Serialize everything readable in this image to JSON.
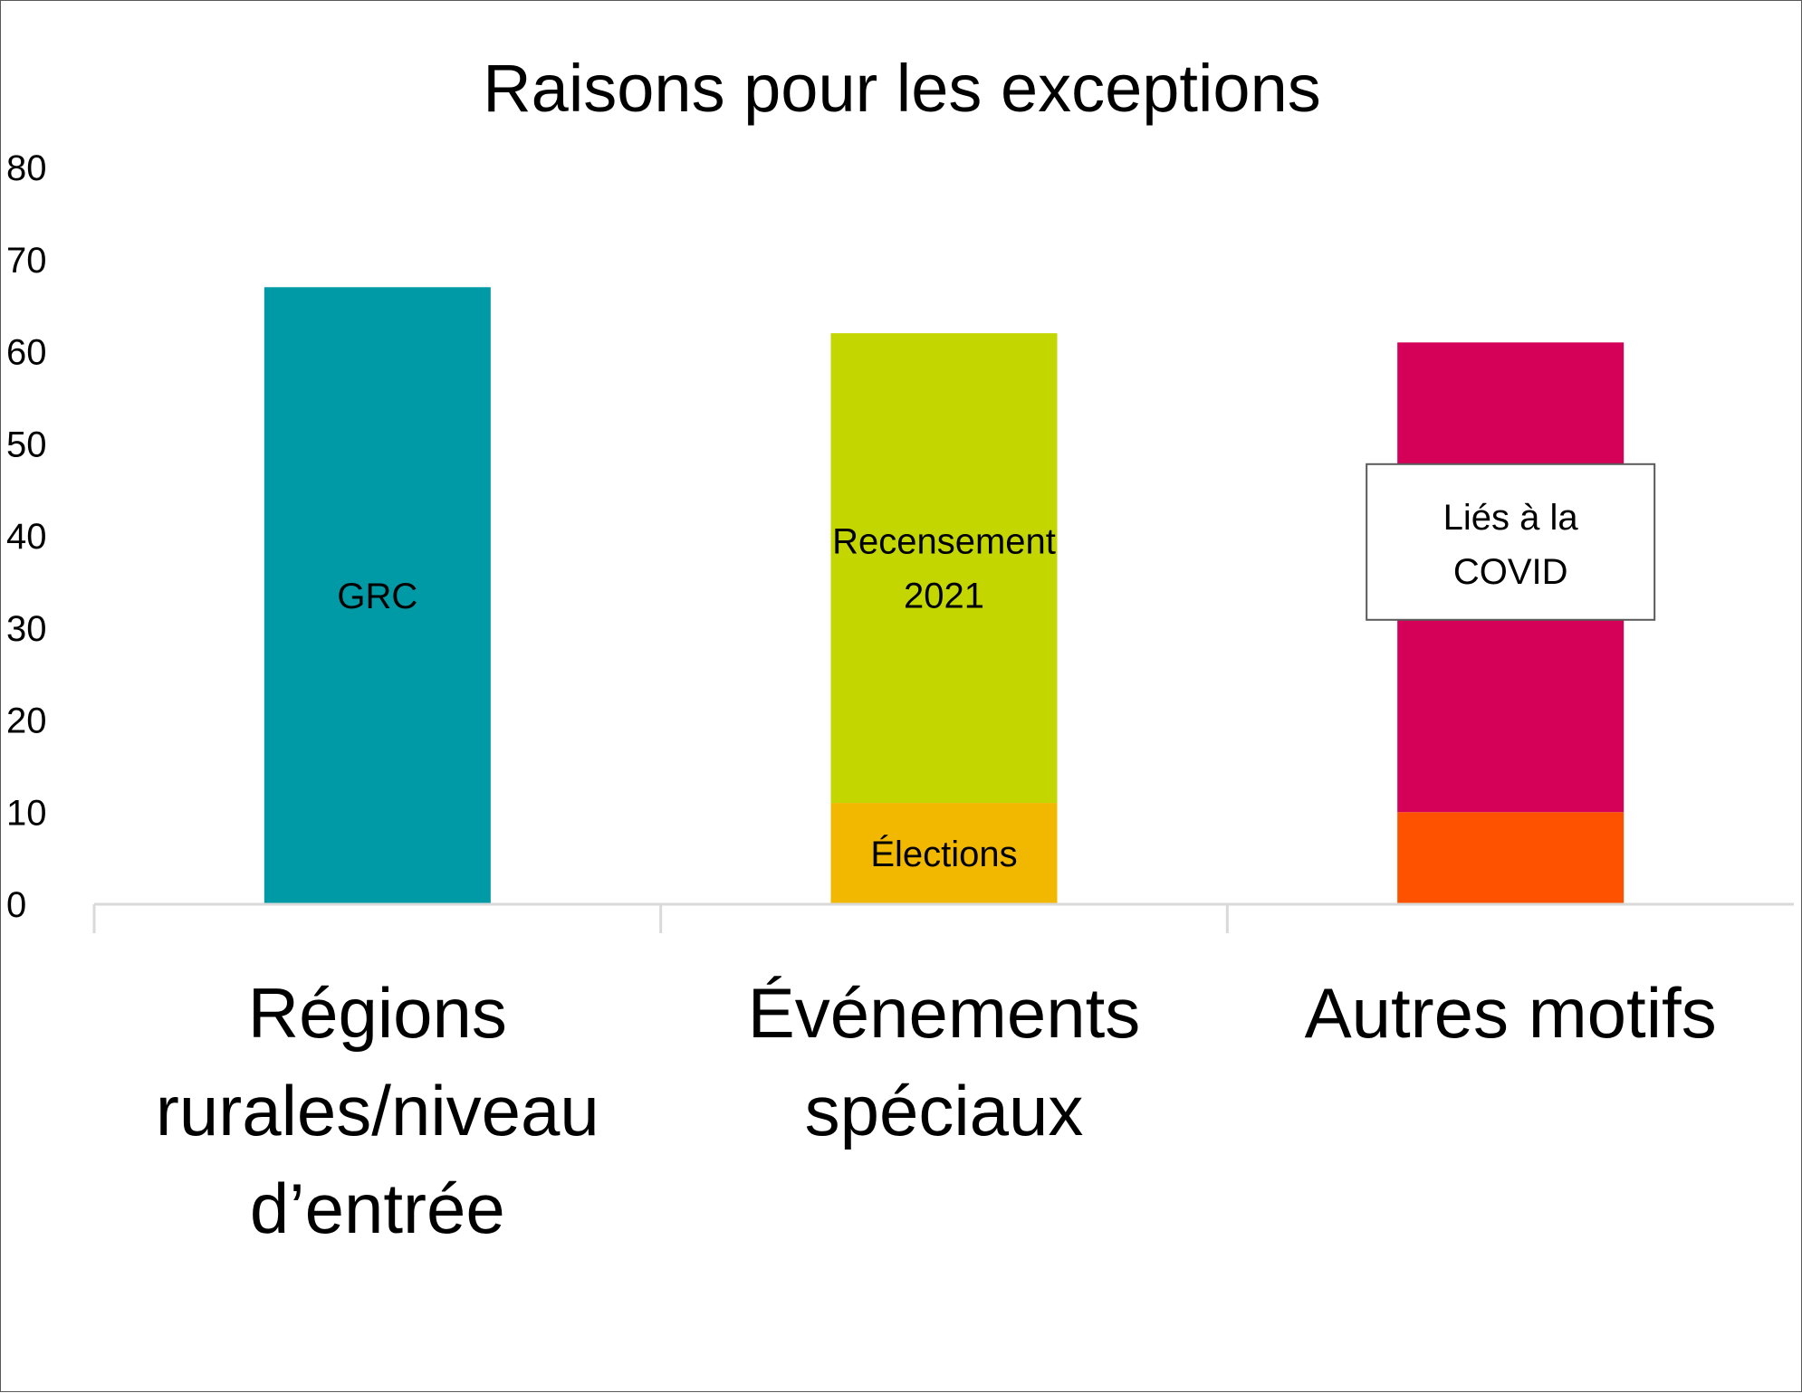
{
  "chart_data": {
    "type": "bar",
    "stacked": true,
    "title": "Raisons pour les exceptions",
    "xlabel": "",
    "ylabel": "",
    "ylim": [
      0,
      80
    ],
    "yticks": [
      0,
      10,
      20,
      30,
      40,
      50,
      60,
      70,
      80
    ],
    "ytick_labels": [
      "0",
      "10",
      "20",
      "30",
      "40",
      "50",
      "60",
      "70",
      "80"
    ],
    "categories": [
      "Régions rurales/niveau d’entrée",
      "Événements spéciaux",
      "Autres motifs"
    ],
    "category_lines": [
      [
        "Régions",
        "rurales/niveau",
        "d’entrée"
      ],
      [
        "Événements",
        "spéciaux"
      ],
      [
        "Autres motifs"
      ]
    ],
    "grid": false,
    "legend": "none",
    "bars": [
      {
        "category": "Régions rurales/niveau d’entrée",
        "segments": [
          {
            "label_lines": [
              "GRC"
            ],
            "value": 67,
            "color": "#009aa6",
            "label_style": "inside"
          }
        ]
      },
      {
        "category": "Événements spéciaux",
        "segments": [
          {
            "label_lines": [
              "Élections"
            ],
            "value": 11,
            "color": "#f2b800",
            "label_style": "inside"
          },
          {
            "label_lines": [
              "Recensement",
              "2021"
            ],
            "value": 51,
            "color": "#c3d600",
            "label_style": "inside"
          }
        ]
      },
      {
        "category": "Autres motifs",
        "segments": [
          {
            "label_lines": [],
            "value": 10,
            "color": "#ff5200",
            "label_style": "none"
          },
          {
            "label_lines": [
              "Liés à la",
              "COVID"
            ],
            "value": 51,
            "color": "#d50057",
            "label_style": "boxed"
          }
        ]
      }
    ],
    "axis_color": "#d9d9d9",
    "text_color": "#000000"
  }
}
